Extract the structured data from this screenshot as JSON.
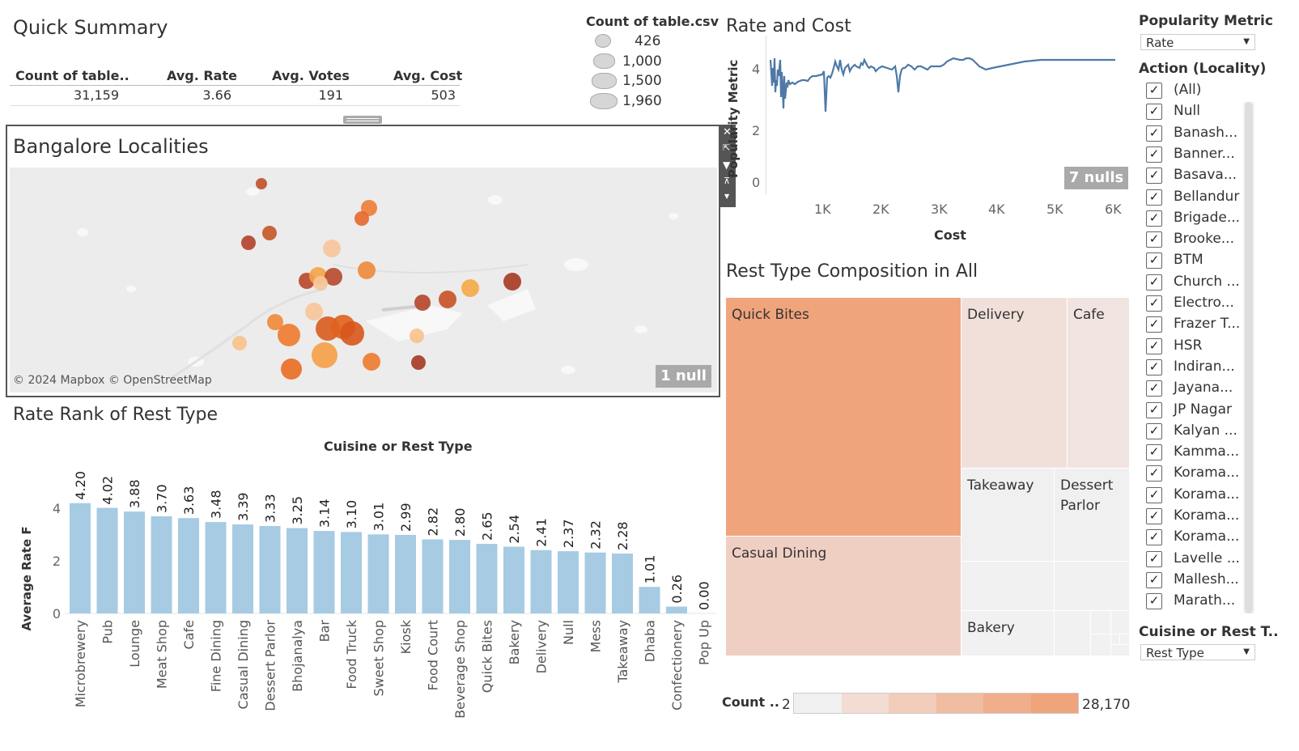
{
  "summary": {
    "title": "Quick Summary",
    "headers": [
      "Count of table..",
      "Avg. Rate",
      "Avg. Votes",
      "Avg. Cost"
    ],
    "values": [
      "31,159",
      "3.66",
      "191",
      "503"
    ]
  },
  "size_legend": {
    "title": "Count of table.csv",
    "items": [
      "426",
      "1,000",
      "1,500",
      "1,960"
    ]
  },
  "map": {
    "title": "Bangalore Localities",
    "attribution": "© 2024 Mapbox © OpenStreetMap",
    "null_badge": "1 null"
  },
  "rate_cost": {
    "title": "Rate and Cost",
    "ylabel": "Popularity Metric",
    "xlabel": "Cost",
    "null_badge": "7 nulls",
    "yticks": [
      "4",
      "2",
      "0"
    ],
    "xticks": [
      "1K",
      "2K",
      "3K",
      "4K",
      "5K",
      "6K"
    ]
  },
  "treemap": {
    "title": "Rest Type Composition in All",
    "cells": [
      "Quick Bites",
      "Delivery",
      "Cafe",
      "Takeaway",
      "Dessert Parlor",
      "Casual Dining",
      "Bakery"
    ],
    "legend_label": "Count ..",
    "legend_min": "2",
    "legend_max": "28,170",
    "colors": [
      "#f0a47c",
      "#f0cfc3",
      "#f1e4e0",
      "#f0f0f0"
    ]
  },
  "bar_panel": {
    "title": "Rate Rank of Rest Type",
    "header": "Cuisine or Rest Type"
  },
  "chart_data": {
    "type": "bar",
    "categories": [
      "Microbrewery",
      "Pub",
      "Lounge",
      "Meat Shop",
      "Cafe",
      "Fine Dining",
      "Casual Dining",
      "Dessert Parlor",
      "Bhojanalya",
      "Bar",
      "Food Truck",
      "Sweet Shop",
      "Kiosk",
      "Food Court",
      "Beverage Shop",
      "Quick Bites",
      "Bakery",
      "Delivery",
      "Null",
      "Mess",
      "Takeaway",
      "Dhaba",
      "Confectionery",
      "Pop Up"
    ],
    "values": [
      4.2,
      4.02,
      3.88,
      3.7,
      3.63,
      3.48,
      3.39,
      3.33,
      3.25,
      3.14,
      3.1,
      3.01,
      2.99,
      2.82,
      2.8,
      2.65,
      2.54,
      2.41,
      2.37,
      2.32,
      2.28,
      1.01,
      0.26,
      0.0
    ],
    "value_labels": [
      "4.20",
      "4.02",
      "3.88",
      "3.70",
      "3.63",
      "3.48",
      "3.39",
      "3.33",
      "3.25",
      "3.14",
      "3.10",
      "3.01",
      "2.99",
      "2.82",
      "2.80",
      "2.65",
      "2.54",
      "2.41",
      "2.37",
      "2.32",
      "2.28",
      "1.01",
      "0.26",
      "0.00"
    ],
    "ylabel": "Average Rate F",
    "yticks": [
      "4",
      "2",
      "0"
    ],
    "ylim": [
      0,
      4.5
    ],
    "color": "#a6cbe3"
  },
  "filters": {
    "metric_label": "Popularity Metric",
    "metric_value": "Rate",
    "locality_label": "Action (Locality)",
    "localities": [
      "(All)",
      "Null",
      "Banash...",
      "Banner...",
      "Basava...",
      "Bellandur",
      "Brigade...",
      "Brooke...",
      "BTM",
      "Church ...",
      "Electro...",
      "Frazer T...",
      "HSR",
      "Indiran...",
      "Jayana...",
      "JP Nagar",
      "Kalyan ...",
      "Kamma...",
      "Korama...",
      "Korama...",
      "Korama...",
      "Korama...",
      "Lavelle ...",
      "Mallesh...",
      "Marath..."
    ],
    "check_mark": "✓",
    "cuisine_label": "Cuisine or Rest T..",
    "cuisine_value": "Rest Type"
  }
}
